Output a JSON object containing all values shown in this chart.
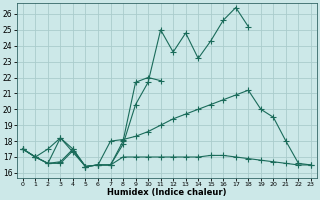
{
  "title": "",
  "xlabel": "Humidex (Indice chaleur)",
  "background_color": "#cce8e8",
  "grid_color": "#aacccc",
  "line_color": "#1a6b5a",
  "xlim": [
    -0.5,
    23.5
  ],
  "ylim": [
    15.7,
    26.7
  ],
  "xticks": [
    0,
    1,
    2,
    3,
    4,
    5,
    6,
    7,
    8,
    9,
    10,
    11,
    12,
    13,
    14,
    15,
    16,
    17,
    18,
    19,
    20,
    21,
    22,
    23
  ],
  "yticks": [
    16,
    17,
    18,
    19,
    20,
    21,
    22,
    23,
    24,
    25,
    26
  ],
  "series1_x": [
    0,
    1,
    2,
    3,
    4,
    5,
    6,
    7,
    8,
    9,
    10,
    11,
    12,
    13,
    14,
    15,
    16,
    17,
    18
  ],
  "series1_y": [
    17.5,
    17.0,
    16.6,
    16.7,
    17.5,
    16.4,
    16.5,
    16.5,
    17.8,
    20.3,
    21.7,
    25.0,
    23.6,
    24.8,
    23.2,
    24.3,
    25.6,
    26.4,
    25.2
  ],
  "series2_x": [
    0,
    1,
    2,
    3,
    4,
    5,
    6,
    7,
    8,
    9,
    10,
    11
  ],
  "series2_y": [
    17.5,
    17.0,
    17.5,
    18.2,
    17.5,
    16.4,
    16.5,
    16.5,
    18.0,
    21.7,
    22.0,
    21.8
  ],
  "series3_x": [
    0,
    1,
    2,
    3,
    4,
    5,
    6,
    7,
    8,
    9,
    10,
    11,
    12,
    13,
    14,
    15,
    16,
    17,
    18,
    19,
    20,
    21,
    22,
    23
  ],
  "series3_y": [
    17.5,
    17.0,
    16.6,
    18.2,
    17.3,
    16.4,
    16.5,
    18.0,
    18.1,
    18.3,
    18.6,
    19.0,
    19.4,
    19.7,
    20.0,
    20.3,
    20.6,
    20.9,
    21.2,
    20.0,
    19.5,
    18.0,
    16.6,
    16.5
  ],
  "series4_x": [
    0,
    1,
    2,
    3,
    4,
    5,
    6,
    7,
    8,
    9,
    10,
    11,
    12,
    13,
    14,
    15,
    16,
    17,
    18,
    19,
    20,
    21,
    22,
    23
  ],
  "series4_y": [
    17.5,
    17.0,
    16.6,
    16.6,
    17.4,
    16.4,
    16.5,
    16.5,
    17.0,
    17.0,
    17.0,
    17.0,
    17.0,
    17.0,
    17.0,
    17.1,
    17.1,
    17.0,
    16.9,
    16.8,
    16.7,
    16.6,
    16.5,
    16.5
  ]
}
